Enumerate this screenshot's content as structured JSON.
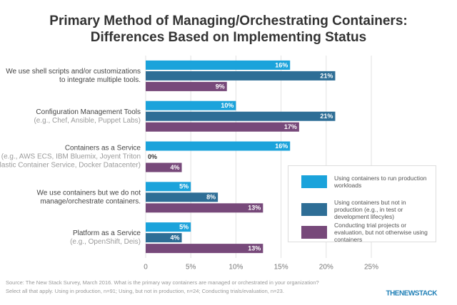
{
  "chart_data": {
    "type": "hbar",
    "title": [
      "Primary Method of Managing/Orchestrating Containers:",
      "Differences Based on Implementing Status"
    ],
    "categories": [
      [
        "We use shell scripts and/or customizations",
        "to integrate multiple tools."
      ],
      [
        "Configuration Management Tools",
        "(e.g., Chef, Ansible, Puppet Labs)"
      ],
      [
        "Containers as a Service",
        "(e.g., AWS ECS, IBM Bluemix, Joyent Triton",
        "Elastic Container Service, Docker Datacenter)"
      ],
      [
        "We use containers but we do not",
        "manage/orchestrate containers."
      ],
      [
        "Platform as a Service",
        "(e.g., OpenShift, Deis)"
      ]
    ],
    "series": [
      {
        "name": "Using containers to run production workloads",
        "color": "#1ba3db",
        "values": [
          16,
          10,
          16,
          5,
          5
        ],
        "value_labels": [
          "16%",
          "10%",
          "16%",
          "5%",
          "5%"
        ]
      },
      {
        "name": "Using containers but not in production (e.g., in test or development lifecyles)",
        "color": "#2e6e96",
        "values": [
          21,
          21,
          0,
          8,
          4
        ],
        "value_labels": [
          "21%",
          "21%",
          "0%",
          "8%",
          "4%"
        ]
      },
      {
        "name": "Conducting trial projects or evaluation, but not otherwise using containers",
        "color": "#77497a",
        "values": [
          9,
          17,
          4,
          13,
          13
        ],
        "value_labels": [
          "9%",
          "17%",
          "4%",
          "13%",
          "13%"
        ]
      }
    ],
    "xlim": [
      0,
      25
    ],
    "xticks": [
      0,
      {
        "value": 5,
        "label": "5%"
      },
      {
        "value": 10,
        "label": "10%"
      },
      {
        "value": 15,
        "label": "15%"
      },
      {
        "value": 20,
        "label": "20%"
      },
      {
        "value": 25,
        "label": "25%"
      }
    ],
    "grid": true,
    "source": [
      "Source: The New Stack Survey, March 2016. What is the primary way containers are managed or orchestrated in your organization?",
      "Select all that apply. Using in production, n=91; Using, but not in production, n=24; Conducting trials/evaluation, n=23."
    ],
    "logo": "THENEWSTACK"
  }
}
